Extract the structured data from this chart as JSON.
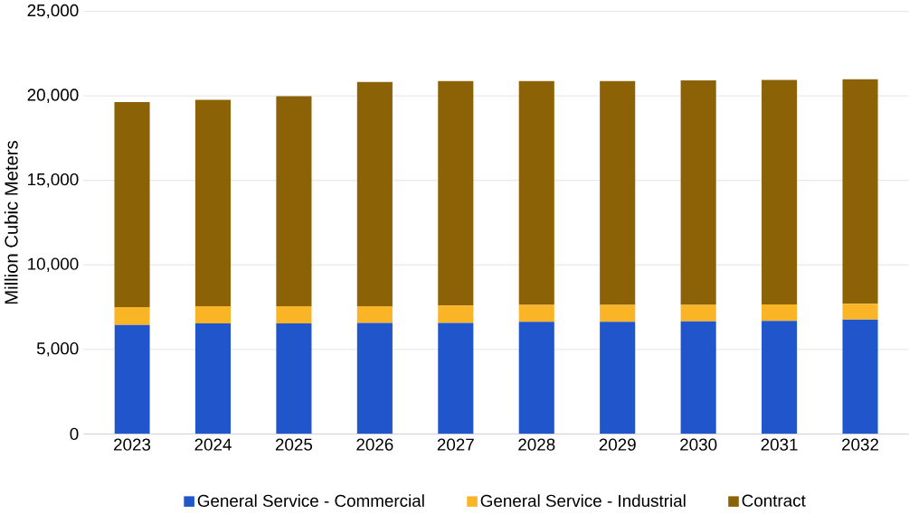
{
  "chart_data": {
    "type": "bar",
    "stacked": true,
    "ylabel": "Million Cubic Meters",
    "categories": [
      "2023",
      "2024",
      "2025",
      "2026",
      "2027",
      "2028",
      "2029",
      "2030",
      "2031",
      "2032"
    ],
    "series": [
      {
        "name": "General Service - Commercial",
        "color": "#2155cb",
        "values": [
          6440,
          6540,
          6540,
          6570,
          6570,
          6630,
          6630,
          6660,
          6690,
          6760
        ]
      },
      {
        "name": "General Service - Industrial",
        "color": "#fab526",
        "values": [
          1060,
          1020,
          1020,
          990,
          1030,
          1000,
          1000,
          970,
          970,
          940
        ]
      },
      {
        "name": "Contract",
        "color": "#8b6205",
        "values": [
          12130,
          12210,
          12420,
          13260,
          13280,
          13250,
          13250,
          13280,
          13280,
          13280
        ]
      }
    ],
    "ylim": [
      0,
      25000
    ],
    "yticks": [
      {
        "value": 0,
        "label": "0"
      },
      {
        "value": 5000,
        "label": "5,000"
      },
      {
        "value": 10000,
        "label": "10,000"
      },
      {
        "value": 15000,
        "label": "15,000"
      },
      {
        "value": 20000,
        "label": "20,000"
      },
      {
        "value": 25000,
        "label": "25,000"
      }
    ],
    "grid": "y",
    "legend": "bottom"
  }
}
